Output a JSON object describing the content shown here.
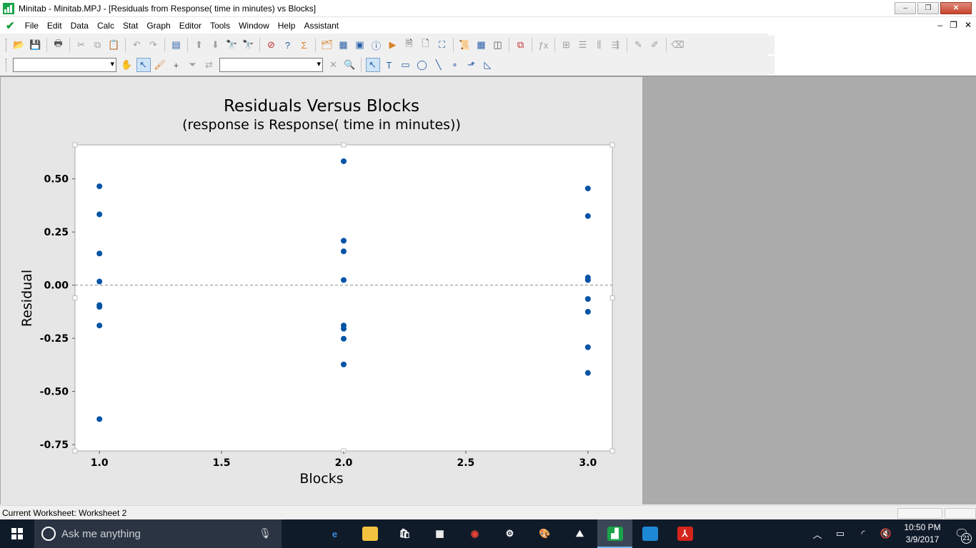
{
  "window": {
    "title": "Minitab - Minitab.MPJ - [Residuals from Response( time in minutes) vs Blocks]",
    "minimize_label": "–",
    "restore_label": "❐",
    "close_label": "✕"
  },
  "menu": {
    "items": [
      {
        "label": "File"
      },
      {
        "label": "Edit"
      },
      {
        "label": "Data"
      },
      {
        "label": "Calc"
      },
      {
        "label": "Stat"
      },
      {
        "label": "Graph"
      },
      {
        "label": "Editor"
      },
      {
        "label": "Tools"
      },
      {
        "label": "Window"
      },
      {
        "label": "Help"
      },
      {
        "label": "Assistant"
      }
    ],
    "mdi_minimize": "–",
    "mdi_restore": "❐",
    "mdi_close": "✕"
  },
  "toolbar1": {
    "buttons": [
      {
        "icon": "open-folder-icon",
        "glyph": "📂",
        "style": "orange"
      },
      {
        "icon": "save-icon",
        "glyph": "💾",
        "style": "blue"
      },
      {
        "sep": true
      },
      {
        "icon": "print-icon",
        "glyph": "🖶",
        "style": ""
      },
      {
        "sep": true
      },
      {
        "icon": "cut-icon",
        "glyph": "✂",
        "style": "grey"
      },
      {
        "icon": "copy-icon",
        "glyph": "⧉",
        "style": "grey"
      },
      {
        "icon": "paste-icon",
        "glyph": "📋",
        "style": "grey"
      },
      {
        "sep": true
      },
      {
        "icon": "undo-icon",
        "glyph": "↶",
        "style": "grey"
      },
      {
        "icon": "redo-icon",
        "glyph": "↷",
        "style": "grey"
      },
      {
        "sep": true
      },
      {
        "icon": "edit-last-dialog-icon",
        "glyph": "▤",
        "style": "blue"
      },
      {
        "sep": true
      },
      {
        "icon": "previous-brushed-row-icon",
        "glyph": "⬆",
        "style": "grey"
      },
      {
        "icon": "next-brushed-row-icon",
        "glyph": "⬇",
        "style": "grey"
      },
      {
        "icon": "find-icon",
        "glyph": "🔭",
        "style": "grey"
      },
      {
        "icon": "find-next-icon",
        "glyph": "🔭",
        "style": "grey"
      },
      {
        "sep": true
      },
      {
        "icon": "cancel-icon",
        "glyph": "⊘",
        "style": "red"
      },
      {
        "icon": "help-icon",
        "glyph": "?",
        "style": "blue"
      },
      {
        "icon": "statguide-icon",
        "glyph": "Σ",
        "style": "orange"
      },
      {
        "sep": true
      },
      {
        "icon": "show-session-icon",
        "glyph": "🗂",
        "style": "orange"
      },
      {
        "icon": "show-worksheets-icon",
        "glyph": "▦",
        "style": "blue"
      },
      {
        "icon": "show-graphs-icon",
        "glyph": "▣",
        "style": "blue"
      },
      {
        "icon": "project-manager-icon",
        "glyph": "ⓘ",
        "style": "blue"
      },
      {
        "icon": "report-pad-icon",
        "glyph": "▶",
        "style": "orange"
      },
      {
        "icon": "related-docs-icon",
        "glyph": "🗎",
        "style": ""
      },
      {
        "icon": "new-document-icon",
        "glyph": "🗋",
        "style": ""
      },
      {
        "icon": "tile-icon",
        "glyph": "⛶",
        "style": "blue"
      },
      {
        "sep": true
      },
      {
        "icon": "history-icon",
        "glyph": "📜",
        "style": "orange"
      },
      {
        "icon": "worksheet-icon",
        "glyph": "▦",
        "style": "blue"
      },
      {
        "icon": "columns-icon",
        "glyph": "◫",
        "style": ""
      },
      {
        "sep": true
      },
      {
        "icon": "close-all-graphs-icon",
        "glyph": "⧉",
        "style": "red"
      },
      {
        "sep": true
      },
      {
        "icon": "formula-icon",
        "glyph": "ƒx",
        "style": "grey"
      },
      {
        "sep": true
      },
      {
        "icon": "insert-cells-icon",
        "glyph": "⊞",
        "style": "grey"
      },
      {
        "icon": "insert-rows-icon",
        "glyph": "☰",
        "style": "grey"
      },
      {
        "icon": "insert-columns-icon",
        "glyph": "⫼",
        "style": "grey"
      },
      {
        "icon": "move-columns-icon",
        "glyph": "⇶",
        "style": "grey"
      },
      {
        "sep": true
      },
      {
        "icon": "brush-icon",
        "glyph": "✎",
        "style": "grey"
      },
      {
        "icon": "set-id-variables-icon",
        "glyph": "✐",
        "style": "grey"
      },
      {
        "sep": true
      },
      {
        "icon": "eraser-icon",
        "glyph": "⌫",
        "style": "grey"
      }
    ]
  },
  "toolbar2": {
    "combo1_value": "",
    "combo2_value": "",
    "buttons_a": [
      {
        "icon": "graph-brush-icon",
        "glyph": "✋",
        "style": "grey"
      },
      {
        "icon": "select-pointer-icon",
        "glyph": "↖",
        "style": "blue",
        "active": true
      },
      {
        "icon": "paint-brush-icon",
        "glyph": "🖌",
        "style": "orange"
      },
      {
        "icon": "crosshairs-icon",
        "glyph": "+",
        "style": ""
      },
      {
        "icon": "filter-icon",
        "glyph": "⏷",
        "style": "grey"
      },
      {
        "icon": "swap-icon",
        "glyph": "⇄",
        "style": "grey"
      }
    ],
    "buttons_b": [
      {
        "icon": "delete-icon",
        "glyph": "✕",
        "style": "grey"
      },
      {
        "icon": "zoom-icon",
        "glyph": "🔍",
        "style": "blue"
      },
      {
        "sep": true
      },
      {
        "icon": "annotation-select-icon",
        "glyph": "↖",
        "style": "blue",
        "active": true
      },
      {
        "icon": "text-tool-icon",
        "glyph": "T",
        "style": "blue"
      },
      {
        "icon": "rectangle-tool-icon",
        "glyph": "▭",
        "style": "blue"
      },
      {
        "icon": "ellipse-tool-icon",
        "glyph": "◯",
        "style": "blue"
      },
      {
        "icon": "line-tool-icon",
        "glyph": "╲",
        "style": "blue"
      },
      {
        "icon": "marker-tool-icon",
        "glyph": "∘",
        "style": "blue"
      },
      {
        "icon": "polyline-tool-icon",
        "glyph": "⬏",
        "style": "blue"
      },
      {
        "icon": "polygon-tool-icon",
        "glyph": "◺",
        "style": "blue"
      }
    ]
  },
  "chart_data": {
    "type": "scatter",
    "title": "Residuals Versus Blocks",
    "subtitle": "(response is Response( time in minutes))",
    "xlabel": "Blocks",
    "ylabel": "Residual",
    "xlim": [
      0.9,
      3.1
    ],
    "ylim": [
      -0.78,
      0.66
    ],
    "x_ticks": [
      {
        "value": 1.0,
        "label": "1.0"
      },
      {
        "value": 1.5,
        "label": "1.5"
      },
      {
        "value": 2.0,
        "label": "2.0"
      },
      {
        "value": 2.5,
        "label": "2.5"
      },
      {
        "value": 3.0,
        "label": "3.0"
      }
    ],
    "y_ticks": [
      {
        "value": 0.5,
        "label": "0.50"
      },
      {
        "value": 0.25,
        "label": "0.25"
      },
      {
        "value": 0.0,
        "label": "0.00"
      },
      {
        "value": -0.25,
        "label": "-0.25"
      },
      {
        "value": -0.5,
        "label": "-0.50"
      },
      {
        "value": -0.75,
        "label": "-0.75"
      }
    ],
    "reference_line_y": 0.0,
    "marker_color": "#0054a6",
    "points": [
      {
        "x": 1,
        "y": 0.465
      },
      {
        "x": 1,
        "y": 0.333
      },
      {
        "x": 1,
        "y": 0.149
      },
      {
        "x": 1,
        "y": 0.017
      },
      {
        "x": 1,
        "y": -0.094
      },
      {
        "x": 1,
        "y": -0.102
      },
      {
        "x": 1,
        "y": -0.19
      },
      {
        "x": 1,
        "y": -0.63
      },
      {
        "x": 2,
        "y": 0.583
      },
      {
        "x": 2,
        "y": 0.209
      },
      {
        "x": 2,
        "y": 0.159
      },
      {
        "x": 2,
        "y": 0.024
      },
      {
        "x": 2,
        "y": -0.19
      },
      {
        "x": 2,
        "y": -0.205
      },
      {
        "x": 2,
        "y": -0.252
      },
      {
        "x": 2,
        "y": -0.373
      },
      {
        "x": 3,
        "y": 0.455
      },
      {
        "x": 3,
        "y": 0.325
      },
      {
        "x": 3,
        "y": 0.036
      },
      {
        "x": 3,
        "y": 0.024
      },
      {
        "x": 3,
        "y": -0.065
      },
      {
        "x": 3,
        "y": -0.125
      },
      {
        "x": 3,
        "y": -0.292
      },
      {
        "x": 3,
        "y": -0.413
      }
    ]
  },
  "statusbar": {
    "text": "Current Worksheet: Worksheet 2"
  },
  "taskbar": {
    "search_placeholder": "Ask me anything",
    "apps": [
      {
        "name": "edge-icon",
        "glyph": "e",
        "bg": "transparent",
        "color": "#3b8fe0"
      },
      {
        "name": "file-explorer-icon",
        "glyph": "▬",
        "bg": "#f3c33f",
        "color": "#f3c33f"
      },
      {
        "name": "store-icon",
        "glyph": "🛍",
        "bg": "transparent",
        "color": "#fff"
      },
      {
        "name": "calendar-icon",
        "glyph": "▦",
        "bg": "transparent",
        "color": "#fff"
      },
      {
        "name": "chrome-icon",
        "glyph": "◉",
        "bg": "transparent",
        "color": "#e94235"
      },
      {
        "name": "settings-icon",
        "glyph": "⚙",
        "bg": "transparent",
        "color": "#fff"
      },
      {
        "name": "paint-icon",
        "glyph": "🎨",
        "bg": "transparent",
        "color": "#fff"
      },
      {
        "name": "photos-icon",
        "glyph": "⛰",
        "bg": "transparent",
        "color": "#fff"
      },
      {
        "name": "minitab-icon",
        "glyph": "▟",
        "bg": "#1aa34a",
        "color": "#fff",
        "active": true
      },
      {
        "name": "remote-desktop-icon",
        "glyph": "▭",
        "bg": "#1d88d6",
        "color": "#1d88d6"
      },
      {
        "name": "acrobat-icon",
        "glyph": "⅄",
        "bg": "#d4251c",
        "color": "#fff"
      }
    ],
    "time": "10:50 PM",
    "date": "3/9/2017",
    "notification_count": "21"
  }
}
